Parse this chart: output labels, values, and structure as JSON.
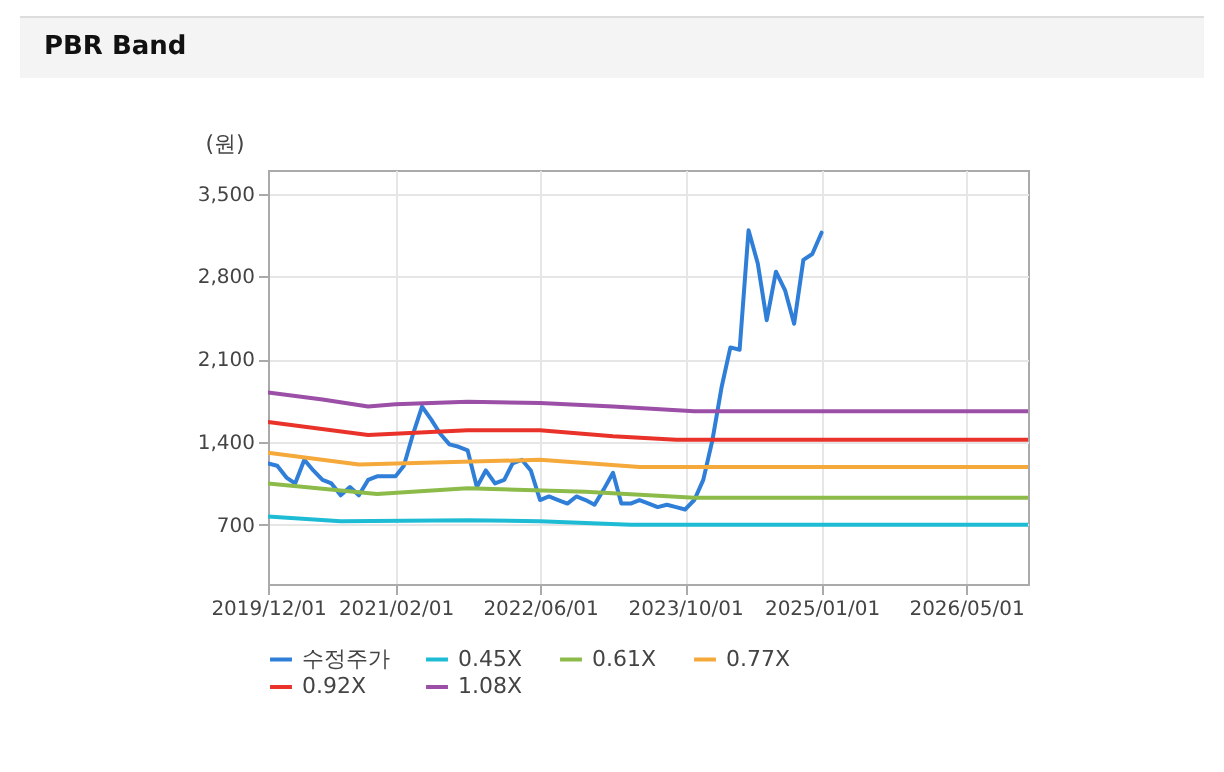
{
  "chart_data": {
    "type": "line",
    "title": "PBR Band",
    "ylabel": "(원)",
    "xlim": [
      "2019-12-01",
      "2026-11-25"
    ],
    "ylim": [
      200,
      3700
    ],
    "xticks": [
      {
        "value": "2019-12-01",
        "label": "2019/12/01"
      },
      {
        "value": "2021-02-01",
        "label": "2021/02/01"
      },
      {
        "value": "2022-06-01",
        "label": "2022/06/01"
      },
      {
        "value": "2023-10-01",
        "label": "2023/10/01"
      },
      {
        "value": "2025-01-01",
        "label": "2025/01/01"
      },
      {
        "value": "2026-05-01",
        "label": "2026/05/01"
      }
    ],
    "yticks": [
      {
        "value": 700,
        "label": "700"
      },
      {
        "value": 1400,
        "label": "1,400"
      },
      {
        "value": 2100,
        "label": "2,100"
      },
      {
        "value": 2800,
        "label": "2,800"
      },
      {
        "value": 3500,
        "label": "3,500"
      }
    ],
    "grid": true,
    "legend": "bottom",
    "marker": "none",
    "line_style": "solid",
    "series": [
      {
        "name": "수정주가",
        "color": "#2f7ed8",
        "x": [
          "2019-12",
          "2020-01",
          "2020-02",
          "2020-03",
          "2020-04",
          "2020-05",
          "2020-06",
          "2020-07",
          "2020-08",
          "2020-09",
          "2020-10",
          "2020-11",
          "2020-12",
          "2021-01",
          "2021-02",
          "2021-03",
          "2021-04",
          "2021-05",
          "2021-06",
          "2021-07",
          "2021-08",
          "2021-09",
          "2021-10",
          "2021-11",
          "2021-12",
          "2022-01",
          "2022-02",
          "2022-03",
          "2022-04",
          "2022-05",
          "2022-06",
          "2022-07",
          "2022-08",
          "2022-09",
          "2022-10",
          "2022-11",
          "2022-12",
          "2023-01",
          "2023-02",
          "2023-03",
          "2023-04",
          "2023-05",
          "2023-06",
          "2023-07",
          "2023-08",
          "2023-09",
          "2023-10",
          "2023-11",
          "2023-12",
          "2024-01",
          "2024-02",
          "2024-03",
          "2024-04",
          "2024-05",
          "2024-06",
          "2024-07",
          "2024-08",
          "2024-09",
          "2024-10",
          "2024-11",
          "2024-12",
          "2025-01"
        ],
        "values": [
          1220,
          1200,
          1100,
          1050,
          1250,
          1160,
          1080,
          1050,
          950,
          1020,
          950,
          1080,
          1110,
          1110,
          1110,
          1200,
          1470,
          1700,
          1590,
          1470,
          1380,
          1360,
          1330,
          1020,
          1160,
          1050,
          1080,
          1220,
          1250,
          1160,
          910,
          940,
          910,
          880,
          940,
          910,
          870,
          1000,
          1140,
          880,
          880,
          910,
          880,
          850,
          870,
          850,
          830,
          910,
          1080,
          1420,
          1870,
          2200,
          2180,
          3190,
          2910,
          2430,
          2840,
          2680,
          2400,
          2940,
          2990,
          3170
        ]
      },
      {
        "name": "0.45X",
        "color": "#1ebcd4",
        "x": [
          "2019-12",
          "2020-08",
          "2021-10",
          "2022-06",
          "2023-04",
          "2026-11-25"
        ],
        "values": [
          770,
          730,
          740,
          730,
          700,
          700
        ]
      },
      {
        "name": "0.61X",
        "color": "#8cbb4a",
        "x": [
          "2019-12",
          "2020-12",
          "2021-10",
          "2022-11",
          "2023-11",
          "2026-11-25"
        ],
        "values": [
          1050,
          960,
          1010,
          980,
          930,
          930
        ]
      },
      {
        "name": "0.77X",
        "color": "#f5a93b",
        "x": [
          "2019-12",
          "2020-10",
          "2022-06",
          "2023-05",
          "2026-11-25"
        ],
        "values": [
          1310,
          1210,
          1250,
          1190,
          1190
        ]
      },
      {
        "name": "0.92X",
        "color": "#e8322a",
        "x": [
          "2019-12",
          "2020-11",
          "2021-10",
          "2022-06",
          "2023-02",
          "2023-09",
          "2026-11-25"
        ],
        "values": [
          1570,
          1460,
          1500,
          1500,
          1450,
          1420,
          1420
        ]
      },
      {
        "name": "1.08X",
        "color": "#9b4fa6",
        "x": [
          "2019-12",
          "2020-06",
          "2020-11",
          "2021-02",
          "2021-10",
          "2022-06",
          "2023-02",
          "2023-11",
          "2026-11-25"
        ],
        "values": [
          1820,
          1760,
          1700,
          1720,
          1740,
          1730,
          1700,
          1660,
          1660
        ]
      }
    ]
  }
}
